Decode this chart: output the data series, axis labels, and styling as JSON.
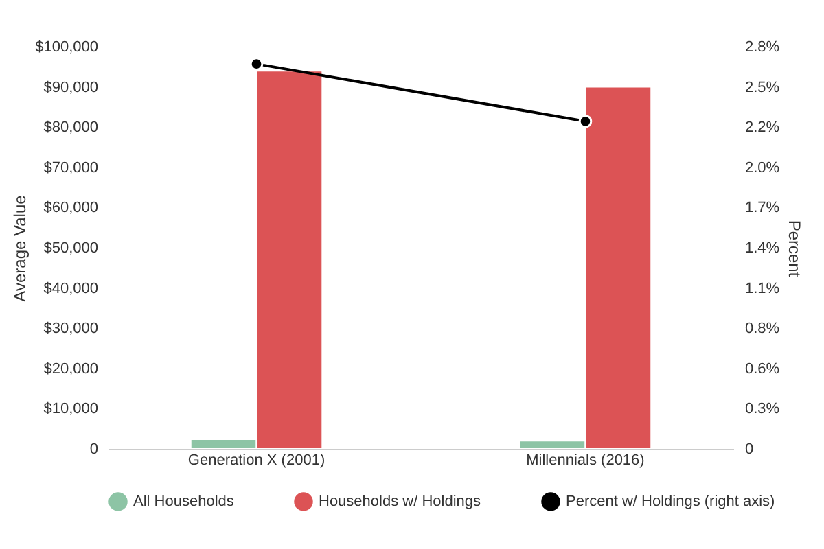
{
  "chart_data": {
    "type": "bar",
    "categories": [
      "Generation X (2001)",
      "Millennials (2016)"
    ],
    "series": [
      {
        "name": "All Households",
        "color": "#8dc4a5",
        "values": [
          2400,
          2000
        ]
      },
      {
        "name": "Households w/ Holdings",
        "color": "#dc5355",
        "values": [
          94000,
          90000
        ]
      },
      {
        "name": "Percent w/ Holdings (right axis)",
        "type": "line",
        "axis": "y2",
        "color": "#000000",
        "marker": "circle",
        "values": [
          2.68,
          2.28
        ]
      }
    ],
    "ylabel": "Average Value",
    "y2label": "Percent",
    "ylim": [
      0,
      100000
    ],
    "yticks": [
      0,
      {
        "value": 10000,
        "label": "$10,000"
      },
      {
        "value": 20000,
        "label": "$20,000"
      },
      {
        "value": 30000,
        "label": "$30,000"
      },
      {
        "value": 40000,
        "label": "$40,000"
      },
      {
        "value": 50000,
        "label": "$50,000"
      },
      {
        "value": 60000,
        "label": "$60,000"
      },
      {
        "value": 70000,
        "label": "$70,000"
      },
      {
        "value": 80000,
        "label": "$80,000"
      },
      {
        "value": 90000,
        "label": "$90,000"
      },
      {
        "value": 100000,
        "label": "$100,000"
      }
    ],
    "y2lim": [
      0,
      2.8
    ],
    "y2ticks": [
      0,
      {
        "value": 0.28,
        "label": "0.3%"
      },
      {
        "value": 0.56,
        "label": "0.6%"
      },
      {
        "value": 0.84,
        "label": "0.8%"
      },
      {
        "value": 1.12,
        "label": "1.1%"
      },
      {
        "value": 1.4,
        "label": "1.4%"
      },
      {
        "value": 1.68,
        "label": "1.7%"
      },
      {
        "value": 1.96,
        "label": "2.0%"
      },
      {
        "value": 2.24,
        "label": "2.2%"
      },
      {
        "value": 2.52,
        "label": "2.5%"
      },
      {
        "value": 2.8,
        "label": "2.8%"
      }
    ],
    "grid": false,
    "legend": "bottom"
  }
}
